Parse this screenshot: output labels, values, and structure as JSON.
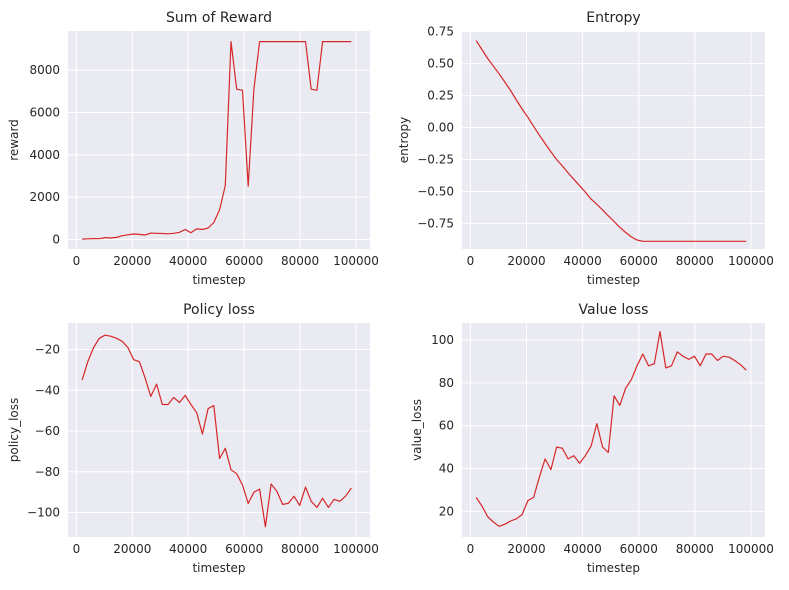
{
  "figure": {
    "series_color": "#d62728",
    "background_color": "#eaeaf2",
    "style": "seaborn-darkgrid"
  },
  "chart_data": [
    {
      "type": "line",
      "title": "Sum of Reward",
      "xlabel": "timestep",
      "ylabel": "reward",
      "xlim": [
        -3000,
        105000
      ],
      "ylim": [
        -450,
        9850
      ],
      "xticks": [
        0,
        20000,
        40000,
        60000,
        80000,
        100000
      ],
      "yticks": [
        0,
        2000,
        4000,
        6000,
        8000
      ],
      "xtick_labels": [
        "0",
        "20000",
        "40000",
        "60000",
        "80000",
        "100000"
      ],
      "ytick_labels": [
        "0",
        "2000",
        "4000",
        "6000",
        "8000"
      ],
      "grid": true,
      "x": [
        2048,
        4096,
        6144,
        8192,
        10240,
        12288,
        14336,
        16384,
        18432,
        20480,
        22528,
        24576,
        26624,
        28672,
        30720,
        32768,
        34816,
        36864,
        38912,
        40960,
        43008,
        45056,
        47104,
        49152,
        51200,
        53248,
        55296,
        57344,
        59392,
        61440,
        63488,
        65536,
        67584,
        69632,
        71680,
        73728,
        75776,
        77824,
        79872,
        81920,
        83968,
        86016,
        88064,
        90112,
        92160,
        94208,
        96256,
        98304
      ],
      "y": [
        20,
        30,
        40,
        35,
        90,
        70,
        100,
        180,
        220,
        260,
        240,
        210,
        300,
        290,
        280,
        270,
        290,
        340,
        470,
        320,
        500,
        470,
        540,
        800,
        1400,
        2550,
        9350,
        7100,
        7050,
        2520,
        7100,
        9350,
        9350,
        9350,
        9350,
        9350,
        9350,
        9350,
        9350,
        9350,
        7100,
        7050,
        9350,
        9350,
        9350,
        9350,
        9350,
        9350
      ]
    },
    {
      "type": "line",
      "title": "Entropy",
      "xlabel": "timestep",
      "ylabel": "entropy",
      "xlim": [
        -3000,
        105000
      ],
      "ylim": [
        -0.95,
        0.755
      ],
      "xticks": [
        0,
        20000,
        40000,
        60000,
        80000,
        100000
      ],
      "yticks": [
        -0.75,
        -0.5,
        -0.25,
        0.0,
        0.25,
        0.5,
        0.75
      ],
      "xtick_labels": [
        "0",
        "20000",
        "40000",
        "60000",
        "80000",
        "100000"
      ],
      "ytick_labels": [
        "−0.75",
        "−0.50",
        "−0.25",
        "0.00",
        "0.25",
        "0.50",
        "0.75"
      ],
      "grid": true,
      "x": [
        2048,
        4096,
        6144,
        8192,
        10240,
        12288,
        14336,
        16384,
        18432,
        20480,
        22528,
        24576,
        26624,
        28672,
        30720,
        32768,
        34816,
        36864,
        38912,
        40960,
        43008,
        45056,
        47104,
        49152,
        51200,
        53248,
        55296,
        57344,
        59392,
        61440,
        63488,
        65536,
        67584,
        69632,
        71680,
        73728,
        75776,
        77824,
        79872,
        81920,
        83968,
        86016,
        88064,
        90112,
        92160,
        94208,
        96256,
        98304
      ],
      "y": [
        0.68,
        0.61,
        0.54,
        0.48,
        0.42,
        0.355,
        0.29,
        0.215,
        0.145,
        0.08,
        0.01,
        -0.06,
        -0.125,
        -0.19,
        -0.25,
        -0.3,
        -0.355,
        -0.405,
        -0.455,
        -0.505,
        -0.56,
        -0.6,
        -0.645,
        -0.69,
        -0.735,
        -0.78,
        -0.82,
        -0.855,
        -0.88,
        -0.89,
        -0.89,
        -0.89,
        -0.89,
        -0.89,
        -0.89,
        -0.89,
        -0.89,
        -0.89,
        -0.89,
        -0.89,
        -0.89,
        -0.89,
        -0.89,
        -0.89,
        -0.89,
        -0.89,
        -0.89,
        -0.89
      ]
    },
    {
      "type": "line",
      "title": "Policy loss",
      "xlabel": "timestep",
      "ylabel": "policy_loss",
      "xlim": [
        -3000,
        105000
      ],
      "ylim": [
        -112,
        -7
      ],
      "xticks": [
        0,
        20000,
        40000,
        60000,
        80000,
        100000
      ],
      "yticks": [
        -100,
        -80,
        -60,
        -40,
        -20
      ],
      "xtick_labels": [
        "0",
        "20000",
        "40000",
        "60000",
        "80000",
        "100000"
      ],
      "ytick_labels": [
        "−100",
        "−80",
        "−60",
        "−40",
        "−20"
      ],
      "grid": true,
      "x": [
        2048,
        4096,
        6144,
        8192,
        10240,
        12288,
        14336,
        16384,
        18432,
        20480,
        22528,
        24576,
        26624,
        28672,
        30720,
        32768,
        34816,
        36864,
        38912,
        40960,
        43008,
        45056,
        47104,
        49152,
        51200,
        53248,
        55296,
        57344,
        59392,
        61440,
        63488,
        65536,
        67584,
        69632,
        71680,
        73728,
        75776,
        77824,
        79872,
        81920,
        83968,
        86016,
        88064,
        90112,
        92160,
        94208,
        96256,
        98304
      ],
      "y": [
        -35,
        -26,
        -19,
        -14.5,
        -13,
        -13.5,
        -14.5,
        -16,
        -19,
        -25,
        -26,
        -34,
        -43,
        -37,
        -47,
        -47,
        -43.5,
        -46,
        -42.5,
        -47,
        -51,
        -61.5,
        -49,
        -47.5,
        -73.5,
        -68.5,
        -79,
        -81,
        -86.5,
        -95.5,
        -90,
        -88.5,
        -107,
        -86,
        -89.5,
        -96,
        -95.5,
        -92,
        -96.5,
        -87.5,
        -94.5,
        -97.5,
        -93,
        -97.5,
        -93.5,
        -94.5,
        -92,
        -88
      ]
    },
    {
      "type": "line",
      "title": "Value loss",
      "xlabel": "timestep",
      "ylabel": "value_loss",
      "xlim": [
        -3000,
        105000
      ],
      "ylim": [
        8,
        108
      ],
      "xticks": [
        0,
        20000,
        40000,
        60000,
        80000,
        100000
      ],
      "yticks": [
        20,
        40,
        60,
        80,
        100
      ],
      "xtick_labels": [
        "0",
        "20000",
        "40000",
        "60000",
        "80000",
        "100000"
      ],
      "ytick_labels": [
        "20",
        "40",
        "60",
        "80",
        "100"
      ],
      "grid": true,
      "x": [
        2048,
        4096,
        6144,
        8192,
        10240,
        12288,
        14336,
        16384,
        18432,
        20480,
        22528,
        24576,
        26624,
        28672,
        30720,
        32768,
        34816,
        36864,
        38912,
        40960,
        43008,
        45056,
        47104,
        49152,
        51200,
        53248,
        55296,
        57344,
        59392,
        61440,
        63488,
        65536,
        67584,
        69632,
        71680,
        73728,
        75776,
        77824,
        79872,
        81920,
        83968,
        86016,
        88064,
        90112,
        92160,
        94208,
        96256,
        98304
      ],
      "y": [
        26.5,
        22.5,
        17.5,
        15,
        13,
        14,
        15.5,
        16.5,
        18.5,
        25,
        26.5,
        36,
        44.5,
        39.5,
        50,
        49.5,
        44.5,
        46,
        42.5,
        46,
        50.5,
        61,
        50,
        47.5,
        74,
        69.5,
        77.5,
        81.5,
        88,
        93.5,
        88,
        89,
        104,
        87,
        88,
        94.5,
        92.5,
        91,
        92.5,
        88,
        93.5,
        93.5,
        90.5,
        92.5,
        92,
        90.5,
        88.5,
        86
      ]
    }
  ]
}
